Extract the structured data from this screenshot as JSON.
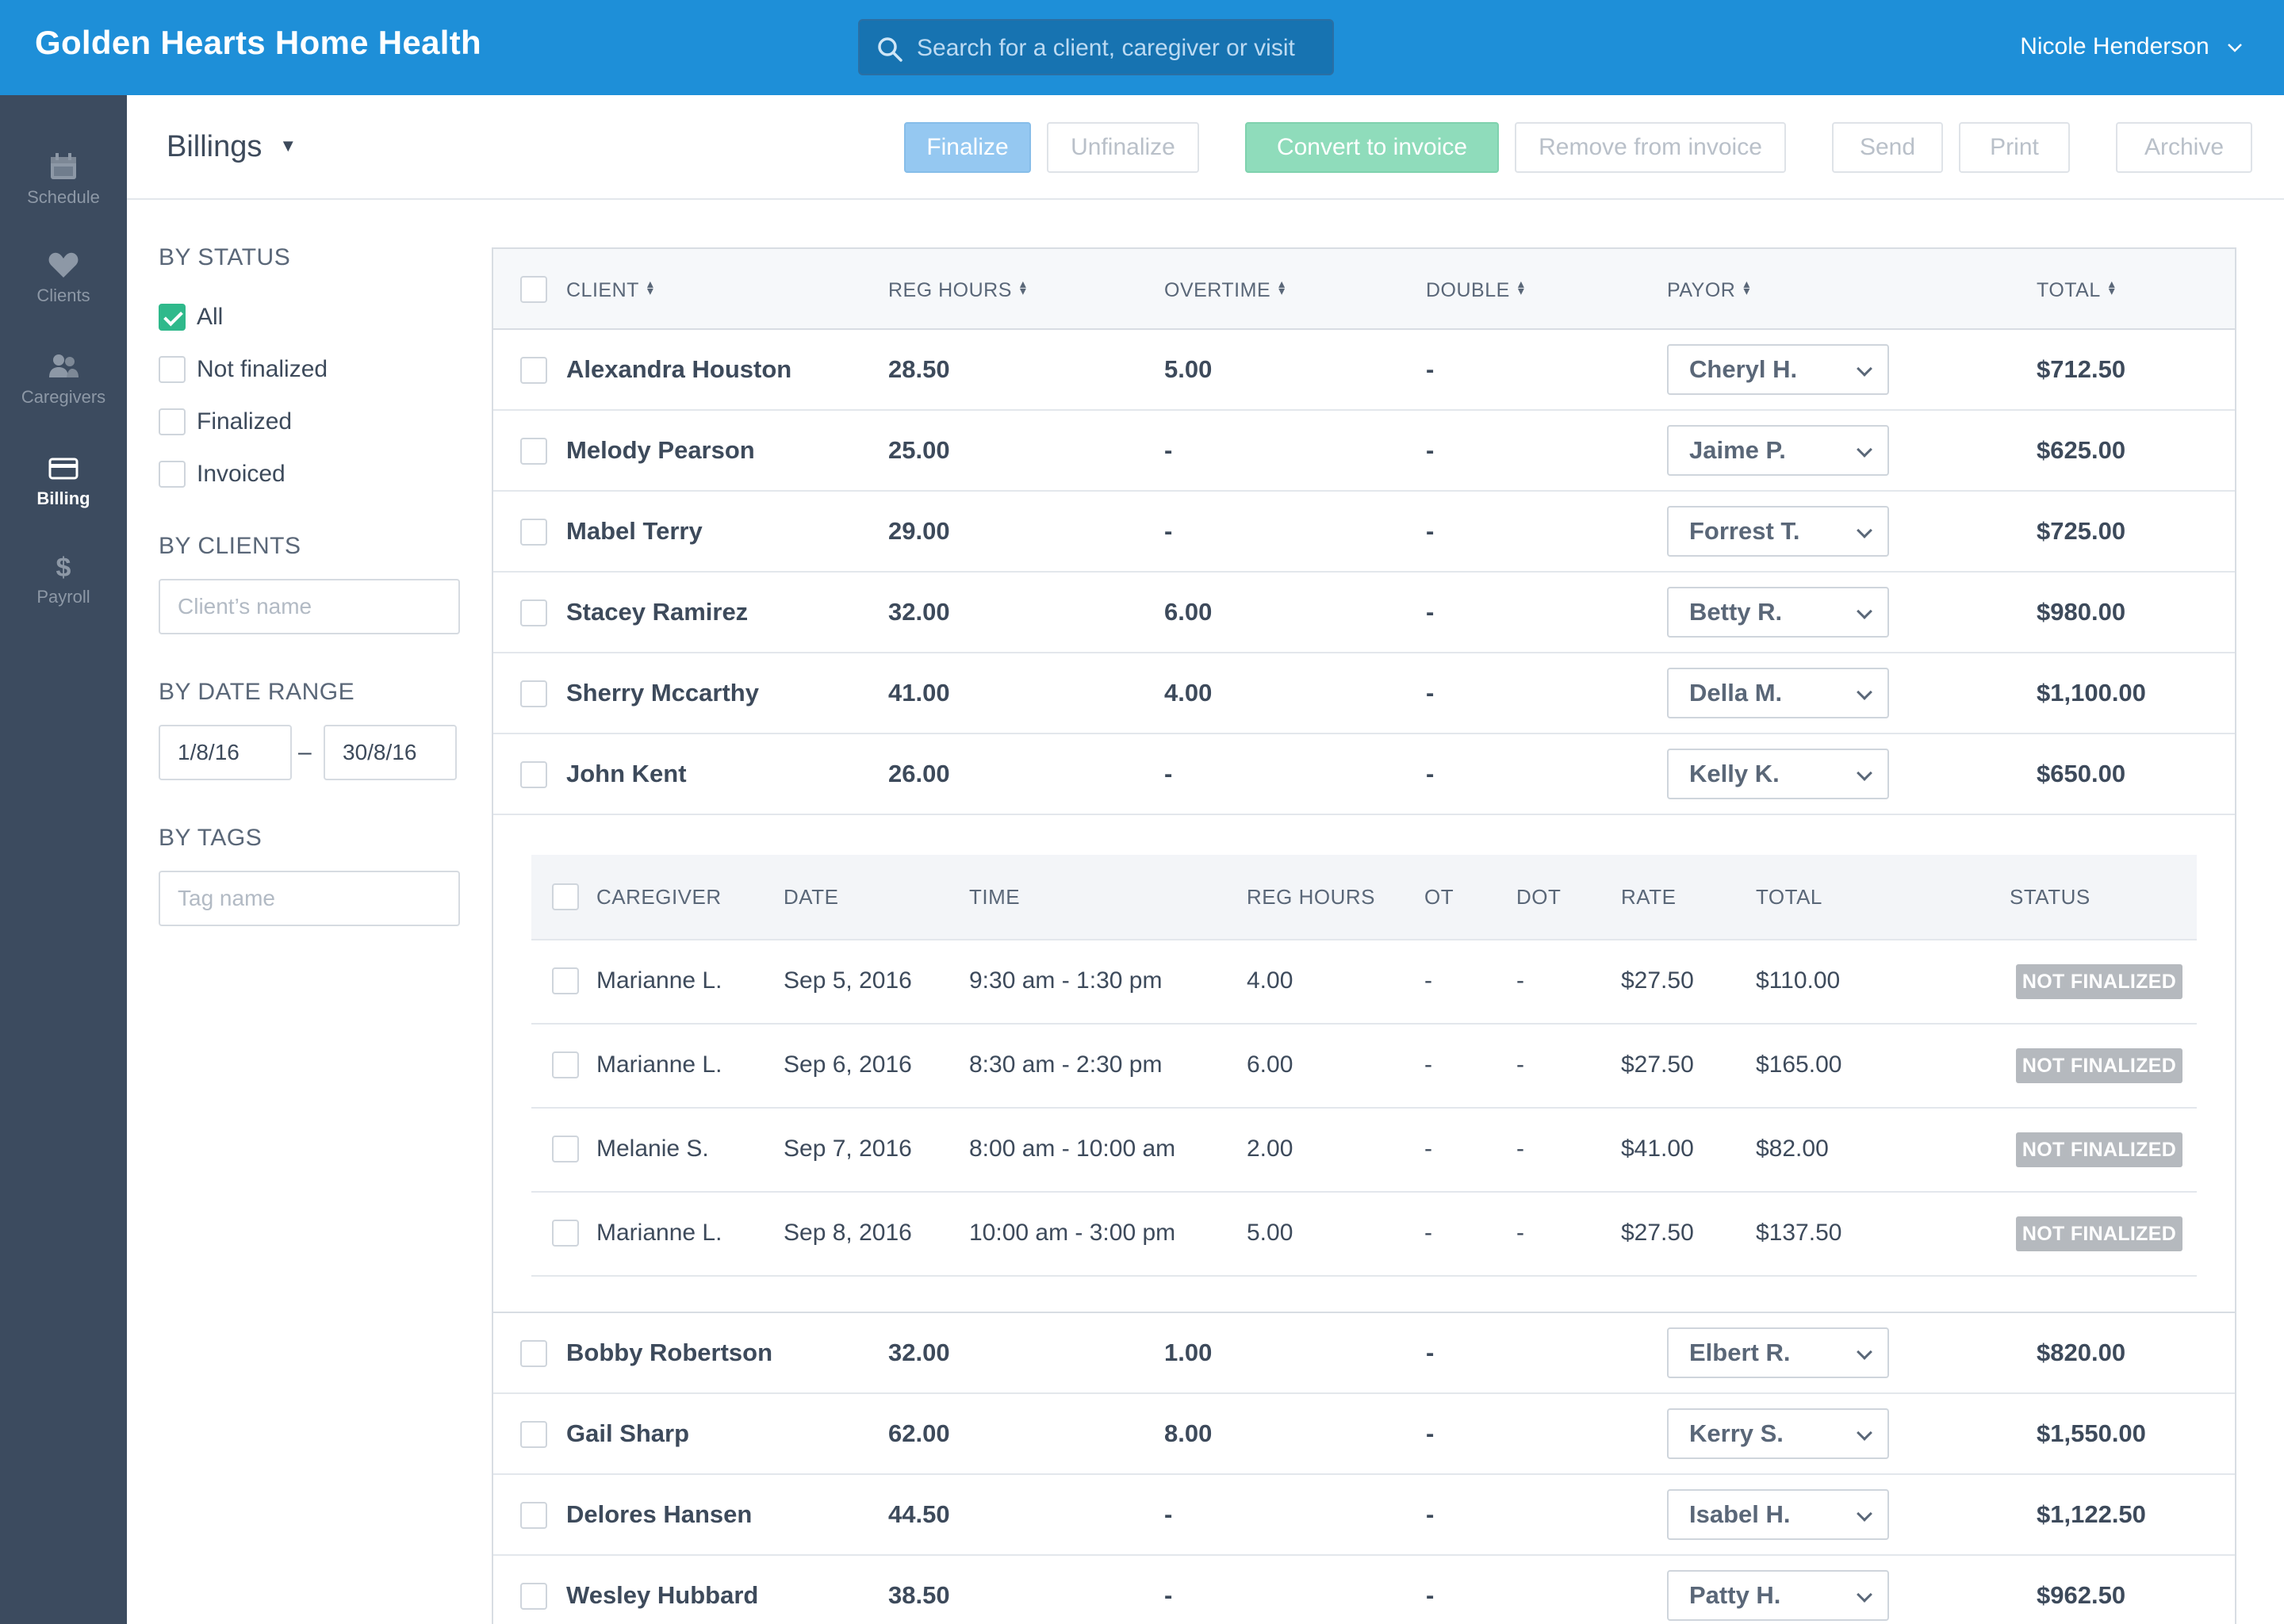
{
  "app": {
    "title": "Golden Hearts Home Health",
    "search_placeholder": "Search for a client, caregiver or visit",
    "user_name": "Nicole Henderson"
  },
  "nav": [
    {
      "label": "Schedule",
      "icon": "calendar-icon",
      "active": false
    },
    {
      "label": "Clients",
      "icon": "heart-icon",
      "active": false
    },
    {
      "label": "Caregivers",
      "icon": "people-icon",
      "active": false
    },
    {
      "label": "Billing",
      "icon": "credit-card-icon",
      "active": true
    },
    {
      "label": "Payroll",
      "icon": "dollar-icon",
      "active": false
    }
  ],
  "toolbar": {
    "title": "Billings",
    "finalize": "Finalize",
    "unfinalize": "Unfinalize",
    "convert": "Convert to invoice",
    "remove": "Remove from invoice",
    "send": "Send",
    "print": "Print",
    "archive": "Archive"
  },
  "filters": {
    "status_heading": "BY STATUS",
    "status_options": [
      {
        "label": "All",
        "checked": true
      },
      {
        "label": "Not finalized",
        "checked": false
      },
      {
        "label": "Finalized",
        "checked": false
      },
      {
        "label": "Invoiced",
        "checked": false
      }
    ],
    "clients_heading": "BY CLIENTS",
    "clients_placeholder": "Client’s name",
    "date_heading": "BY DATE RANGE",
    "date_from": "1/8/16",
    "date_sep": "–",
    "date_to": "30/8/16",
    "tags_heading": "BY TAGS",
    "tags_placeholder": "Tag name"
  },
  "table": {
    "headers": {
      "client": "CLIENT",
      "reg_hours": "REG HOURS",
      "overtime": "OVERTIME",
      "double": "DOUBLE",
      "payor": "PAYOR",
      "total": "TOTAL"
    },
    "rows_top": [
      {
        "client": "Alexandra Houston",
        "reg": "28.50",
        "ot": "5.00",
        "dbl": "-",
        "payor": "Cheryl H.",
        "total": "$712.50"
      },
      {
        "client": "Melody Pearson",
        "reg": "25.00",
        "ot": "-",
        "dbl": "-",
        "payor": "Jaime P.",
        "total": "$625.00"
      },
      {
        "client": "Mabel Terry",
        "reg": "29.00",
        "ot": "-",
        "dbl": "-",
        "payor": "Forrest T.",
        "total": "$725.00"
      },
      {
        "client": "Stacey Ramirez",
        "reg": "32.00",
        "ot": "6.00",
        "dbl": "-",
        "payor": "Betty R.",
        "total": "$980.00"
      },
      {
        "client": "Sherry Mccarthy",
        "reg": "41.00",
        "ot": "4.00",
        "dbl": "-",
        "payor": "Della M.",
        "total": "$1,100.00"
      },
      {
        "client": "John Kent",
        "reg": "26.00",
        "ot": "-",
        "dbl": "-",
        "payor": "Kelly K.",
        "total": "$650.00"
      }
    ],
    "detail": {
      "headers": {
        "caregiver": "CAREGIVER",
        "date": "DATE",
        "time": "TIME",
        "reg_hours": "REG HOURS",
        "ot": "OT",
        "dot": "DOT",
        "rate": "RATE",
        "total": "TOTAL",
        "status": "STATUS"
      },
      "rows": [
        {
          "caregiver": "Marianne L.",
          "date": "Sep 5, 2016",
          "time": "9:30 am - 1:30 pm",
          "reg": "4.00",
          "ot": "-",
          "dot": "-",
          "rate": "$27.50",
          "total": "$110.00",
          "status": "NOT FINALIZED"
        },
        {
          "caregiver": "Marianne L.",
          "date": "Sep 6, 2016",
          "time": "8:30 am - 2:30 pm",
          "reg": "6.00",
          "ot": "-",
          "dot": "-",
          "rate": "$27.50",
          "total": "$165.00",
          "status": "NOT FINALIZED"
        },
        {
          "caregiver": "Melanie S.",
          "date": "Sep 7, 2016",
          "time": "8:00 am - 10:00 am",
          "reg": "2.00",
          "ot": "-",
          "dot": "-",
          "rate": "$41.00",
          "total": "$82.00",
          "status": "NOT FINALIZED"
        },
        {
          "caregiver": "Marianne L.",
          "date": "Sep 8, 2016",
          "time": "10:00 am - 3:00 pm",
          "reg": "5.00",
          "ot": "-",
          "dot": "-",
          "rate": "$27.50",
          "total": "$137.50",
          "status": "NOT FINALIZED"
        }
      ]
    },
    "rows_bottom": [
      {
        "client": "Bobby Robertson",
        "reg": "32.00",
        "ot": "1.00",
        "dbl": "-",
        "payor": "Elbert R.",
        "total": "$820.00"
      },
      {
        "client": "Gail Sharp",
        "reg": "62.00",
        "ot": "8.00",
        "dbl": "-",
        "payor": "Kerry S.",
        "total": "$1,550.00"
      },
      {
        "client": "Delores Hansen",
        "reg": "44.50",
        "ot": "-",
        "dbl": "-",
        "payor": "Isabel H.",
        "total": "$1,122.50"
      },
      {
        "client": "Wesley Hubbard",
        "reg": "38.50",
        "ot": "-",
        "dbl": "-",
        "payor": "Patty H.",
        "total": "$962.50"
      }
    ]
  },
  "colors": {
    "topbar": "#1e8fd8",
    "sidebar": "#3c4b5f",
    "checked": "#2fb98b",
    "finalize_btn": "#95c8f1",
    "convert_btn": "#8fdcbb",
    "status_badge": "#b5b9be"
  }
}
